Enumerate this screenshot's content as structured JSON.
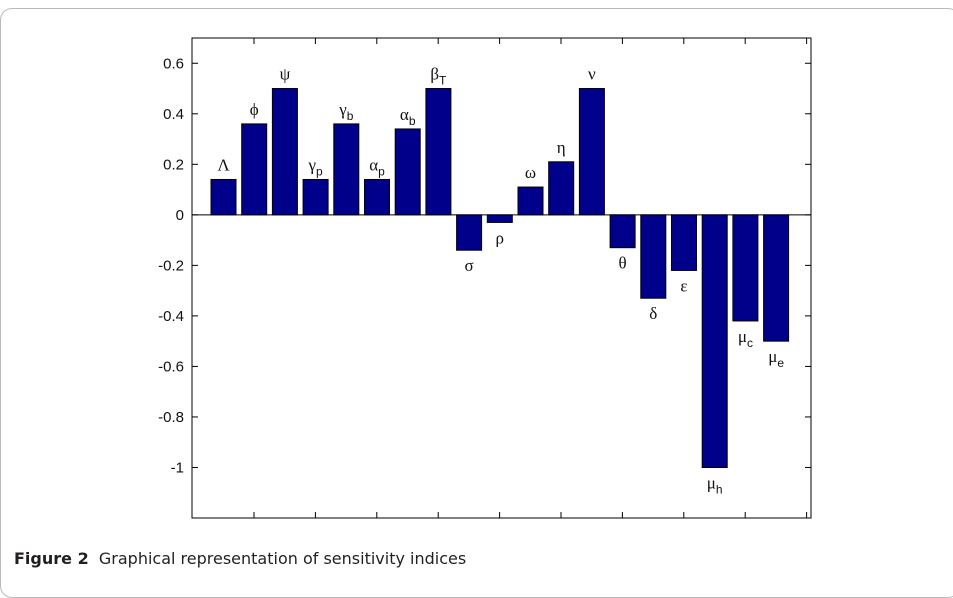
{
  "chart_data": {
    "type": "bar",
    "categories": [
      "Λ",
      "ϕ",
      "ψ",
      "γp",
      "γb",
      "αp",
      "αb",
      "βT",
      "σ",
      "ρ",
      "ω",
      "η",
      "ν",
      "θ",
      "δ",
      "ε",
      "μh",
      "μc",
      "μe"
    ],
    "labels": [
      {
        "main": "Λ",
        "sub": ""
      },
      {
        "main": "ϕ",
        "sub": ""
      },
      {
        "main": "ψ",
        "sub": ""
      },
      {
        "main": "γ",
        "sub": "p"
      },
      {
        "main": "γ",
        "sub": "b"
      },
      {
        "main": "α",
        "sub": "p"
      },
      {
        "main": "α",
        "sub": "b"
      },
      {
        "main": "β",
        "sub": "T"
      },
      {
        "main": "σ",
        "sub": ""
      },
      {
        "main": "ρ",
        "sub": ""
      },
      {
        "main": "ω",
        "sub": ""
      },
      {
        "main": "η",
        "sub": ""
      },
      {
        "main": "ν",
        "sub": ""
      },
      {
        "main": "θ",
        "sub": ""
      },
      {
        "main": "δ",
        "sub": ""
      },
      {
        "main": "ε",
        "sub": ""
      },
      {
        "main": "μ",
        "sub": "h"
      },
      {
        "main": "μ",
        "sub": "c"
      },
      {
        "main": "μ",
        "sub": "e"
      }
    ],
    "values": [
      0.14,
      0.36,
      0.5,
      0.14,
      0.36,
      0.14,
      0.34,
      0.5,
      -0.14,
      -0.03,
      0.11,
      0.21,
      0.5,
      -0.13,
      -0.33,
      -0.22,
      -1.0,
      -0.42,
      -0.5
    ],
    "ylim": [
      -1.2,
      0.7
    ],
    "yticks": [
      0.6,
      0.4,
      0.2,
      0,
      -0.2,
      -0.4,
      -0.6,
      -0.8,
      -1
    ],
    "ytick_labels": [
      "0.6",
      "0.4",
      "0.2",
      "0",
      "-0.2",
      "-0.4",
      "-0.6",
      "-0.8",
      "-1"
    ],
    "bar_color": "#00008b",
    "grid": false,
    "title": "",
    "xlabel": "",
    "ylabel": ""
  },
  "caption": {
    "label": "Figure 2",
    "text": "Graphical representation of sensitivity indices"
  }
}
